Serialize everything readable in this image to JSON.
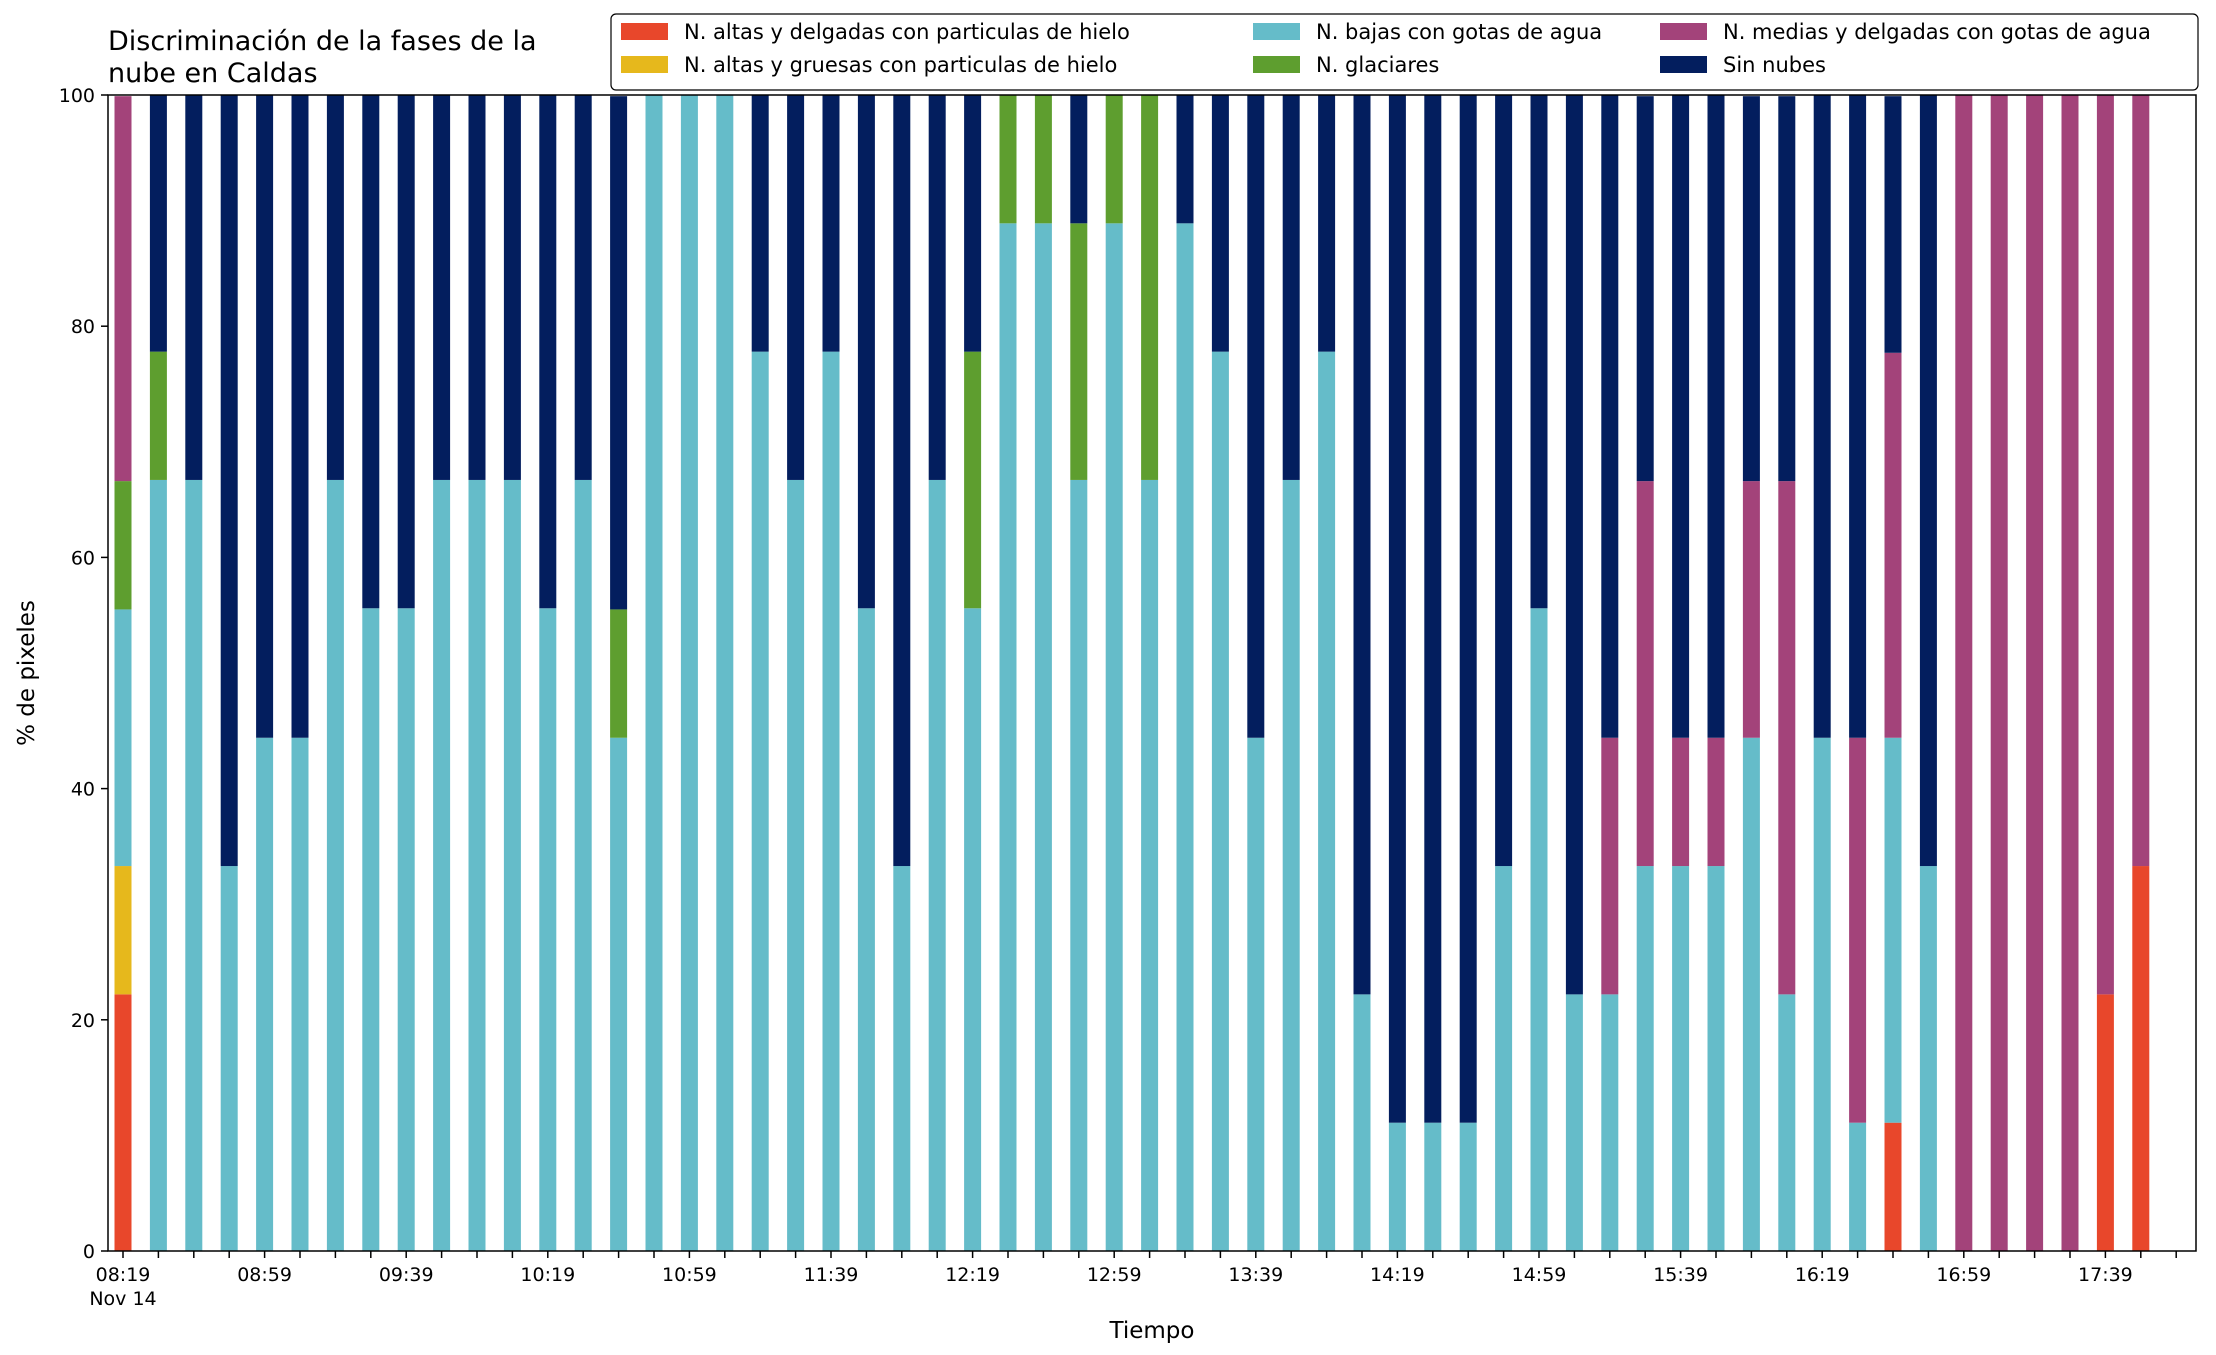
{
  "chart_data": {
    "type": "bar",
    "stacked": true,
    "title": "Discriminación de la fases de la\nnube en Caldas",
    "xlabel": "Tiempo",
    "ylabel": "% de pixeles",
    "ylim": [
      0,
      100
    ],
    "yticks": [
      0,
      20,
      40,
      60,
      80,
      100
    ],
    "grid": false,
    "legend_position": "top-right",
    "x_interval_minutes": 10,
    "x_start": "08:19",
    "x_tick_labels": [
      {
        "index": 0,
        "label": "08:19",
        "sublabel": "Nov 14"
      },
      {
        "index": 4,
        "label": "08:59"
      },
      {
        "index": 8,
        "label": "09:39"
      },
      {
        "index": 12,
        "label": "10:19"
      },
      {
        "index": 16,
        "label": "10:59"
      },
      {
        "index": 20,
        "label": "11:39"
      },
      {
        "index": 24,
        "label": "12:19"
      },
      {
        "index": 28,
        "label": "12:59"
      },
      {
        "index": 32,
        "label": "13:39"
      },
      {
        "index": 36,
        "label": "14:19"
      },
      {
        "index": 40,
        "label": "14:59"
      },
      {
        "index": 44,
        "label": "15:39"
      },
      {
        "index": 48,
        "label": "16:19"
      },
      {
        "index": 52,
        "label": "16:59"
      },
      {
        "index": 56,
        "label": "17:39"
      }
    ],
    "series": [
      {
        "name": "N. altas y delgadas con particulas de hielo",
        "color": "#e8472b",
        "values": [
          22.2,
          0,
          0,
          0,
          0,
          0,
          0,
          0,
          0,
          0,
          0,
          0,
          0,
          0,
          0,
          0,
          0,
          0,
          0,
          0,
          0,
          0,
          0,
          0,
          0,
          0,
          0,
          0,
          0,
          0,
          0,
          0,
          0,
          0,
          0,
          0,
          0,
          0,
          0,
          0,
          0,
          0,
          0,
          0,
          0,
          0,
          0,
          0,
          0,
          0,
          11.1,
          0,
          0,
          0,
          0,
          0,
          22.2,
          33.3
        ]
      },
      {
        "name": "N. altas y gruesas con particulas de hielo",
        "color": "#e6b81c",
        "values": [
          11.1,
          0,
          0,
          0,
          0,
          0,
          0,
          0,
          0,
          0,
          0,
          0,
          0,
          0,
          0,
          0,
          0,
          0,
          0,
          0,
          0,
          0,
          0,
          0,
          0,
          0,
          0,
          0,
          0,
          0,
          0,
          0,
          0,
          0,
          0,
          0,
          0,
          0,
          0,
          0,
          0,
          0,
          0,
          0,
          0,
          0,
          0,
          0,
          0,
          0,
          0,
          0,
          0,
          0,
          0,
          0,
          0,
          0
        ]
      },
      {
        "name": "N. bajas con gotas de agua",
        "color": "#65bcc9",
        "values": [
          22.2,
          66.7,
          66.7,
          33.3,
          44.4,
          44.4,
          66.7,
          55.6,
          55.6,
          66.7,
          66.7,
          66.7,
          55.6,
          66.7,
          44.4,
          100,
          100,
          100,
          77.8,
          66.7,
          77.8,
          55.6,
          33.3,
          66.7,
          55.6,
          88.9,
          88.9,
          66.7,
          88.9,
          66.7,
          88.9,
          77.8,
          44.4,
          66.7,
          77.8,
          22.2,
          11.1,
          11.1,
          11.1,
          33.3,
          55.6,
          22.2,
          22.2,
          33.3,
          33.3,
          33.3,
          44.4,
          22.2,
          44.4,
          11.1,
          33.3,
          33.3,
          0,
          0,
          0,
          0,
          0,
          0
        ]
      },
      {
        "name": "N. glaciares",
        "color": "#5e9e2f",
        "values": [
          11.1,
          11.1,
          0,
          0,
          0,
          0,
          0,
          0,
          0,
          0,
          0,
          0,
          0,
          0,
          11.1,
          0,
          0,
          0,
          0,
          0,
          0,
          0,
          0,
          0,
          22.2,
          11.1,
          11.1,
          22.2,
          11.1,
          33.3,
          0,
          0,
          0,
          0,
          0,
          0,
          0,
          0,
          0,
          0,
          0,
          0,
          0,
          0,
          0,
          0,
          0,
          0,
          0,
          0,
          0,
          0,
          0,
          0,
          0,
          0,
          0,
          0
        ]
      },
      {
        "name": "N. medias y delgadas con gotas de agua",
        "color": "#a3437a",
        "values": [
          33.3,
          0,
          0,
          0,
          0,
          0,
          0,
          0,
          0,
          0,
          0,
          0,
          0,
          0,
          0,
          0,
          0,
          0,
          0,
          0,
          0,
          0,
          0,
          0,
          0,
          0,
          0,
          0,
          0,
          0,
          0,
          0,
          0,
          0,
          0,
          0,
          0,
          0,
          0,
          0,
          0,
          0,
          22.2,
          33.3,
          11.1,
          11.1,
          22.2,
          44.4,
          0,
          33.3,
          33.3,
          0,
          100,
          100,
          100,
          100,
          77.8,
          66.7
        ]
      },
      {
        "name": "Sin nubes",
        "color": "#031e5e",
        "values": [
          0,
          22.2,
          33.3,
          66.7,
          55.6,
          55.6,
          33.3,
          44.4,
          44.4,
          33.3,
          33.3,
          33.3,
          44.4,
          33.3,
          44.4,
          0,
          0,
          0,
          22.2,
          33.3,
          22.2,
          44.4,
          66.7,
          33.3,
          22.2,
          0,
          0,
          11.1,
          0,
          0,
          11.1,
          22.2,
          55.6,
          33.3,
          22.2,
          77.8,
          88.9,
          88.9,
          88.9,
          66.7,
          44.4,
          77.8,
          55.6,
          33.3,
          55.6,
          55.6,
          33.3,
          33.3,
          55.6,
          55.6,
          22.2,
          66.7,
          0,
          0,
          0,
          0,
          0,
          0
        ]
      }
    ]
  }
}
